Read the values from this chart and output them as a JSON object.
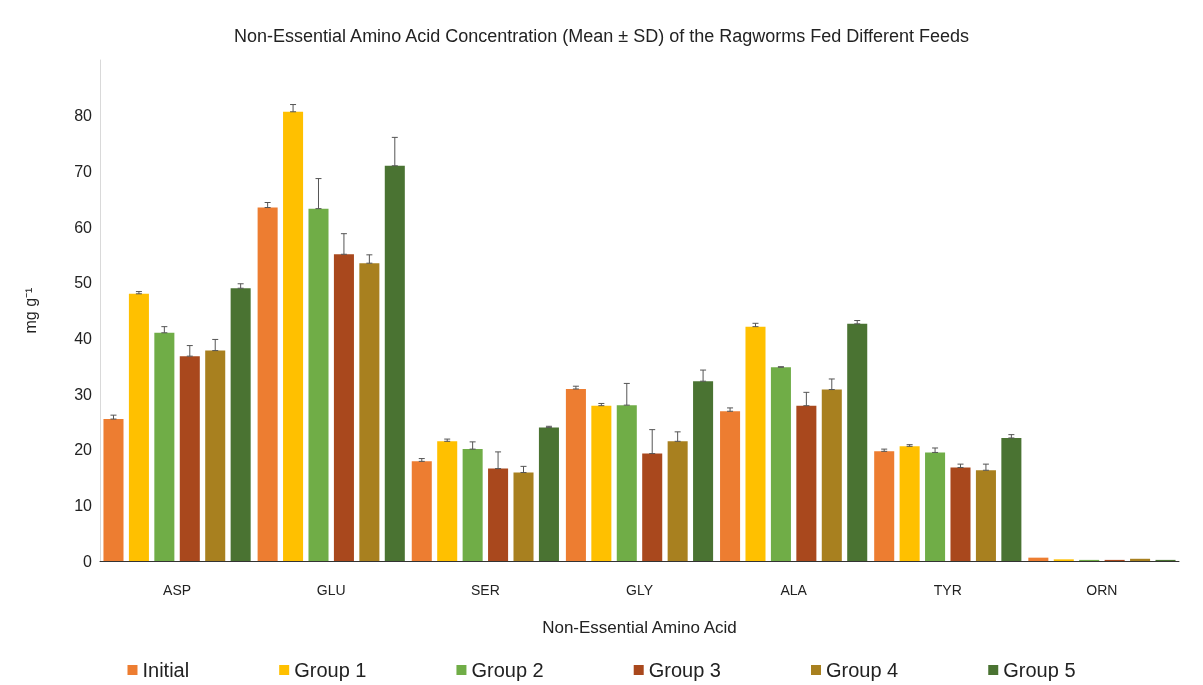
{
  "chart_data": {
    "type": "bar",
    "title": "Non-Essential Amino Acid Concentration (Mean ± SD) of the Ragworms Fed Different Feeds",
    "xlabel": "Non-Essential Amino Acid",
    "ylabel": "mg g⁻¹",
    "categories": [
      "ASP",
      "GLU",
      "SER",
      "GLY",
      "ALA",
      "TYR",
      "ORN"
    ],
    "series": [
      {
        "name": "Initial",
        "color": "#ed7d31",
        "values": [
          25.5,
          63.5,
          17.9,
          30.9,
          26.9,
          19.7,
          0.6
        ],
        "errors": [
          [
            25.5,
            26.2
          ],
          [
            63.5,
            64.4
          ],
          [
            17.9,
            18.4
          ],
          [
            30.9,
            31.4
          ],
          [
            26.9,
            27.5
          ],
          [
            19.7,
            20.1
          ],
          null
        ]
      },
      {
        "name": "Group 1",
        "color": "#ffc000",
        "values": [
          48,
          80.7,
          21.5,
          27.9,
          42.1,
          20.6,
          0.3
        ],
        "errors": [
          [
            48,
            48.4
          ],
          [
            80.7,
            82
          ],
          [
            21.5,
            21.9
          ],
          [
            27.9,
            28.3
          ],
          [
            42.1,
            42.7
          ],
          [
            20.6,
            20.9
          ],
          null
        ]
      },
      {
        "name": "Group 2",
        "color": "#70ad47",
        "values": [
          41,
          63.3,
          20.1,
          28,
          34.8,
          19.5,
          0.2
        ],
        "errors": [
          [
            41,
            42.1
          ],
          [
            63.3,
            68.7
          ],
          [
            20.1,
            21.4
          ],
          [
            28,
            31.9
          ],
          [
            34.8,
            34.9
          ],
          [
            19.5,
            20.3
          ],
          null
        ]
      },
      {
        "name": "Group 3",
        "color": "#a9481d",
        "values": [
          36.8,
          55.1,
          16.6,
          19.3,
          27.9,
          16.8,
          0.2
        ],
        "errors": [
          [
            36.8,
            38.7
          ],
          [
            55.1,
            58.8
          ],
          [
            16.6,
            19.6
          ],
          [
            19.3,
            23.6
          ],
          [
            27.9,
            30.3
          ],
          [
            16.8,
            17.4
          ],
          null
        ]
      },
      {
        "name": "Group 4",
        "color": "#a8801f",
        "values": [
          37.8,
          53.5,
          15.9,
          21.5,
          30.8,
          16.3,
          0.4
        ],
        "errors": [
          [
            37.8,
            39.8
          ],
          [
            53.5,
            55
          ],
          [
            15.9,
            17
          ],
          [
            21.5,
            23.2
          ],
          [
            30.8,
            32.7
          ],
          [
            16.3,
            17.4
          ],
          null
        ]
      },
      {
        "name": "Group 5",
        "color": "#4a7332",
        "values": [
          49,
          71,
          24,
          32.3,
          42.6,
          22.1,
          0.2
        ],
        "errors": [
          [
            49,
            49.8
          ],
          [
            71,
            76.1
          ],
          [
            24,
            24.2
          ],
          [
            32.3,
            34.3
          ],
          [
            42.6,
            43.2
          ],
          [
            22.1,
            22.7
          ],
          null
        ]
      }
    ],
    "ylim": [
      0,
      90
    ],
    "yticks": [
      0,
      10,
      20,
      30,
      40,
      50,
      60,
      70,
      80
    ],
    "grid": false,
    "legend": "bottom"
  }
}
